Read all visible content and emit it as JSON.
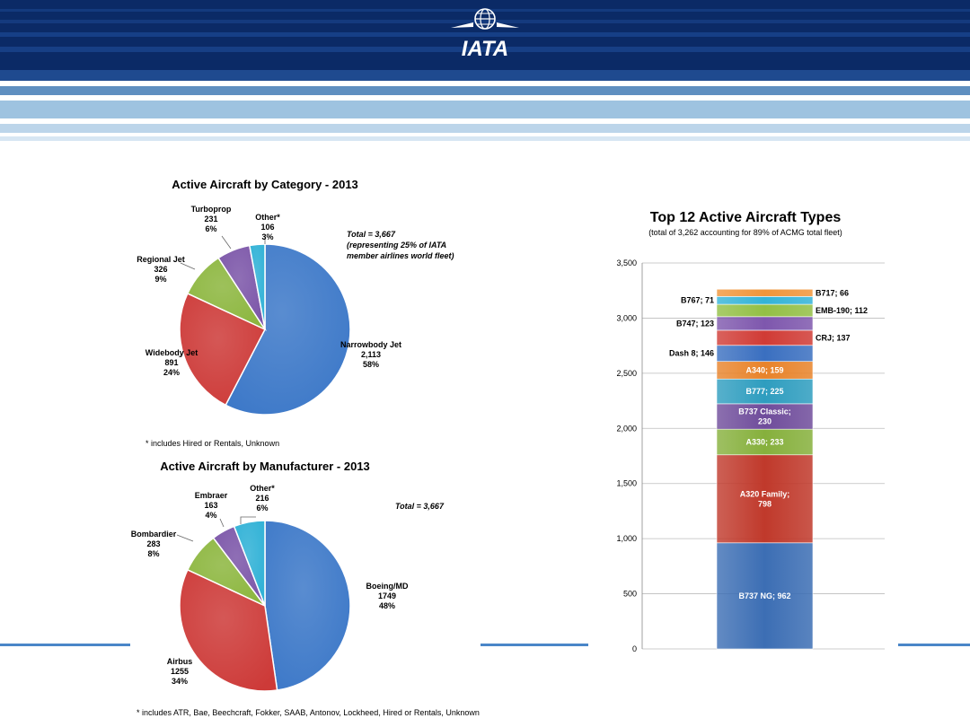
{
  "header": {
    "logo_text": "IATA",
    "colors": {
      "dark": "#0b2a66",
      "mid": "#1f4a8f",
      "light": "#9ec3e0",
      "pale": "#d7e6f3"
    }
  },
  "footnotes": {
    "category": "* includes Hired or Rentals, Unknown",
    "manufacturer": "* includes ATR, Bae, Beechcraft, Fokker, SAAB, Antonov, Lockheed, Hired or Rentals, Unknown"
  },
  "chart_data": [
    {
      "type": "pie",
      "title": "Active Aircraft by Category - 2013",
      "annotation": [
        "Total = 3,667",
        "(representing 25% of IATA",
        "member airlines world fleet)"
      ],
      "slices": [
        {
          "label": "Narrowbody Jet",
          "value": 2113,
          "value_text": "2,113",
          "percent": "58%",
          "color": "#3c78c8"
        },
        {
          "label": "Widebody Jet",
          "value": 891,
          "value_text": "891",
          "percent": "24%",
          "color": "#cd3a38"
        },
        {
          "label": "Regional Jet",
          "value": 326,
          "value_text": "326",
          "percent": "9%",
          "color": "#8cb63e"
        },
        {
          "label": "Turboprop",
          "value": 231,
          "value_text": "231",
          "percent": "6%",
          "color": "#7b55a8"
        },
        {
          "label": "Other*",
          "value": 106,
          "value_text": "106",
          "percent": "3%",
          "color": "#2fb1d6"
        }
      ]
    },
    {
      "type": "pie",
      "title": "Active Aircraft by Manufacturer - 2013",
      "annotation": [
        "Total = 3,667"
      ],
      "slices": [
        {
          "label": "Boeing/MD",
          "value": 1749,
          "value_text": "1749",
          "percent": "48%",
          "color": "#3c78c8"
        },
        {
          "label": "Airbus",
          "value": 1255,
          "value_text": "1255",
          "percent": "34%",
          "color": "#cd3a38"
        },
        {
          "label": "Bombardier",
          "value": 283,
          "value_text": "283",
          "percent": "8%",
          "color": "#8cb63e"
        },
        {
          "label": "Embraer",
          "value": 163,
          "value_text": "163",
          "percent": "4%",
          "color": "#7b55a8"
        },
        {
          "label": "Other*",
          "value": 216,
          "value_text": "216",
          "percent": "6%",
          "color": "#2fb1d6"
        }
      ]
    },
    {
      "type": "bar",
      "stacked": true,
      "title": "Top 12 Active Aircraft Types",
      "subtitle": "(total of 3,262 accounting for 89% of ACMG total fleet)",
      "ylim": [
        0,
        3500
      ],
      "yticks": [
        "0",
        "500",
        "1,000",
        "1,500",
        "2,000",
        "2,500",
        "3,000",
        "3,500"
      ],
      "grid": true,
      "segments": [
        {
          "name": "B737 NG",
          "value": 962,
          "label_lines": [
            "B737 NG; 962"
          ],
          "color": "#3c6eb4",
          "label_pos": "inside"
        },
        {
          "name": "A320 Family",
          "value": 798,
          "label_lines": [
            "A320 Family;",
            "798"
          ],
          "color": "#c0392b",
          "label_pos": "inside"
        },
        {
          "name": "A330",
          "value": 233,
          "label_lines": [
            "A330; 233"
          ],
          "color": "#86b03c",
          "label_pos": "inside"
        },
        {
          "name": "B737 Classic",
          "value": 230,
          "label_lines": [
            "B737 Classic;",
            "230"
          ],
          "color": "#6f4c9b",
          "label_pos": "inside"
        },
        {
          "name": "B777",
          "value": 225,
          "label_lines": [
            "B777; 225"
          ],
          "color": "#2e9dbf",
          "label_pos": "inside"
        },
        {
          "name": "A340",
          "value": 159,
          "label_lines": [
            "A340; 159"
          ],
          "color": "#e8832a",
          "label_pos": "inside"
        },
        {
          "name": "Dash 8",
          "value": 146,
          "label_lines": [
            "Dash 8; 146"
          ],
          "color": "#3a6fc0",
          "label_pos": "left"
        },
        {
          "name": "CRJ",
          "value": 137,
          "label_lines": [
            "CRJ; 137"
          ],
          "color": "#d03b35",
          "label_pos": "right"
        },
        {
          "name": "B747",
          "value": 123,
          "label_lines": [
            "B747; 123"
          ],
          "color": "#7e57ad",
          "label_pos": "left"
        },
        {
          "name": "EMB-190",
          "value": 112,
          "label_lines": [
            "EMB-190; 112"
          ],
          "color": "#93bf45",
          "label_pos": "right"
        },
        {
          "name": "B767",
          "value": 71,
          "label_lines": [
            "B767; 71"
          ],
          "color": "#33b3d8",
          "label_pos": "left"
        },
        {
          "name": "B717",
          "value": 66,
          "label_lines": [
            "B717; 66"
          ],
          "color": "#f0953a",
          "label_pos": "right"
        }
      ]
    }
  ]
}
